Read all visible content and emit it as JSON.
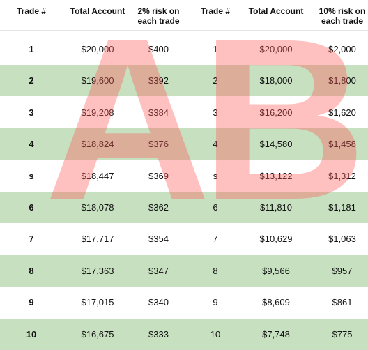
{
  "headers": {
    "a_trade": "Trade #",
    "a_account": "Total Account",
    "a_risk_line1": "2% risk on",
    "a_risk_line2": "each trade",
    "b_trade": "Trade #",
    "b_account": "Total Account",
    "b_risk_line1": "10% risk on",
    "b_risk_line2": "each trade"
  },
  "watermark": {
    "left_letter": "A",
    "right_letter": "B",
    "color": "#ff5a5a"
  },
  "band_color": "#c7e1c0",
  "rows": [
    {
      "a_trade": "1",
      "a_account": "$20,000",
      "a_risk": "$400",
      "b_trade": "1",
      "b_account": "$20,000",
      "b_risk": "$2,000"
    },
    {
      "a_trade": "2",
      "a_account": "$19,600",
      "a_risk": "$392",
      "b_trade": "2",
      "b_account": "$18,000",
      "b_risk": "$1,800"
    },
    {
      "a_trade": "3",
      "a_account": "$19,208",
      "a_risk": "$384",
      "b_trade": "3",
      "b_account": "$16,200",
      "b_risk": "$1,620"
    },
    {
      "a_trade": "4",
      "a_account": "$18,824",
      "a_risk": "$376",
      "b_trade": "4",
      "b_account": "$14,580",
      "b_risk": "$1,458"
    },
    {
      "a_trade": "s",
      "a_account": "$18,447",
      "a_risk": "$369",
      "b_trade": "s",
      "b_account": "$13,122",
      "b_risk": "$1,312"
    },
    {
      "a_trade": "6",
      "a_account": "$18,078",
      "a_risk": "$362",
      "b_trade": "6",
      "b_account": "$11,810",
      "b_risk": "$1,181"
    },
    {
      "a_trade": "7",
      "a_account": "$17,717",
      "a_risk": "$354",
      "b_trade": "7",
      "b_account": "$10,629",
      "b_risk": "$1,063"
    },
    {
      "a_trade": "8",
      "a_account": "$17,363",
      "a_risk": "$347",
      "b_trade": "8",
      "b_account": "$9,566",
      "b_risk": "$957"
    },
    {
      "a_trade": "9",
      "a_account": "$17,015",
      "a_risk": "$340",
      "b_trade": "9",
      "b_account": "$8,609",
      "b_risk": "$861"
    },
    {
      "a_trade": "10",
      "a_account": "$16,675",
      "a_risk": "$333",
      "b_trade": "10",
      "b_account": "$7,748",
      "b_risk": "$775"
    }
  ]
}
